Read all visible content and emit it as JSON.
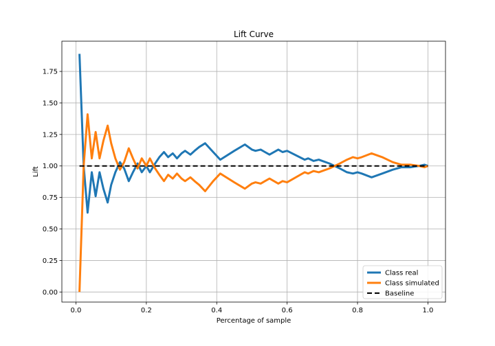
{
  "chart_data": {
    "type": "line",
    "title": "Lift Curve",
    "xlabel": "Percentage of sample",
    "ylabel": "Lift",
    "xlim": [
      -0.04,
      1.05
    ],
    "ylim": [
      -0.08,
      1.99
    ],
    "xticks": [
      0.0,
      0.2,
      0.4,
      0.6,
      0.8,
      1.0
    ],
    "xtick_labels": [
      "0.0",
      "0.2",
      "0.4",
      "0.6",
      "0.8",
      "1.0"
    ],
    "yticks": [
      0.0,
      0.25,
      0.5,
      0.75,
      1.0,
      1.25,
      1.5,
      1.75
    ],
    "ytick_labels": [
      "0.00",
      "0.25",
      "0.50",
      "0.75",
      "1.00",
      "1.25",
      "1.50",
      "1.75"
    ],
    "grid": true,
    "legend_position": "lower-right",
    "series": [
      {
        "name": "Class real",
        "color": "#1f77b4",
        "x": [
          0.01,
          0.022,
          0.033,
          0.045,
          0.056,
          0.067,
          0.078,
          0.09,
          0.1,
          0.112,
          0.125,
          0.137,
          0.15,
          0.162,
          0.175,
          0.187,
          0.2,
          0.21,
          0.225,
          0.237,
          0.25,
          0.262,
          0.275,
          0.287,
          0.3,
          0.31,
          0.325,
          0.337,
          0.35,
          0.367,
          0.39,
          0.41,
          0.45,
          0.48,
          0.5,
          0.51,
          0.525,
          0.537,
          0.55,
          0.575,
          0.587,
          0.6,
          0.65,
          0.66,
          0.675,
          0.69,
          0.7,
          0.72,
          0.75,
          0.77,
          0.787,
          0.8,
          0.812,
          0.84,
          0.87,
          0.9,
          0.925,
          0.95,
          0.975,
          0.99,
          1.0
        ],
        "y": [
          1.89,
          1.0,
          0.63,
          0.95,
          0.76,
          0.95,
          0.82,
          0.71,
          0.85,
          0.95,
          1.03,
          0.98,
          0.88,
          0.95,
          1.02,
          0.95,
          1.0,
          0.95,
          1.02,
          1.07,
          1.11,
          1.07,
          1.1,
          1.06,
          1.1,
          1.12,
          1.09,
          1.12,
          1.15,
          1.18,
          1.11,
          1.05,
          1.12,
          1.17,
          1.13,
          1.12,
          1.13,
          1.11,
          1.09,
          1.13,
          1.11,
          1.12,
          1.05,
          1.06,
          1.04,
          1.05,
          1.04,
          1.02,
          0.98,
          0.95,
          0.94,
          0.95,
          0.94,
          0.91,
          0.94,
          0.97,
          0.99,
          0.99,
          1.0,
          1.01,
          1.0
        ]
      },
      {
        "name": "Class simulated",
        "color": "#ff7f0e",
        "x": [
          0.01,
          0.022,
          0.033,
          0.045,
          0.056,
          0.067,
          0.078,
          0.09,
          0.1,
          0.112,
          0.125,
          0.137,
          0.15,
          0.162,
          0.175,
          0.187,
          0.2,
          0.21,
          0.225,
          0.237,
          0.25,
          0.262,
          0.275,
          0.287,
          0.3,
          0.31,
          0.325,
          0.337,
          0.35,
          0.367,
          0.39,
          0.41,
          0.45,
          0.48,
          0.5,
          0.51,
          0.525,
          0.537,
          0.55,
          0.575,
          0.587,
          0.6,
          0.65,
          0.66,
          0.675,
          0.69,
          0.7,
          0.72,
          0.75,
          0.77,
          0.787,
          0.8,
          0.812,
          0.84,
          0.87,
          0.9,
          0.925,
          0.95,
          0.975,
          0.99,
          1.0
        ],
        "y": [
          0.0,
          1.0,
          1.41,
          1.06,
          1.27,
          1.06,
          1.2,
          1.32,
          1.18,
          1.06,
          0.97,
          1.03,
          1.14,
          1.06,
          0.98,
          1.06,
          1.0,
          1.06,
          0.98,
          0.93,
          0.88,
          0.93,
          0.9,
          0.94,
          0.9,
          0.88,
          0.91,
          0.88,
          0.85,
          0.8,
          0.88,
          0.94,
          0.87,
          0.82,
          0.86,
          0.87,
          0.86,
          0.88,
          0.9,
          0.86,
          0.88,
          0.87,
          0.95,
          0.94,
          0.96,
          0.95,
          0.96,
          0.98,
          1.02,
          1.05,
          1.07,
          1.06,
          1.07,
          1.1,
          1.07,
          1.03,
          1.01,
          1.01,
          1.0,
          0.99,
          1.0
        ]
      },
      {
        "name": "Baseline",
        "color": "#000000",
        "dashed": true,
        "x": [
          0.01,
          1.0
        ],
        "y": [
          1.0,
          1.0
        ]
      }
    ]
  }
}
